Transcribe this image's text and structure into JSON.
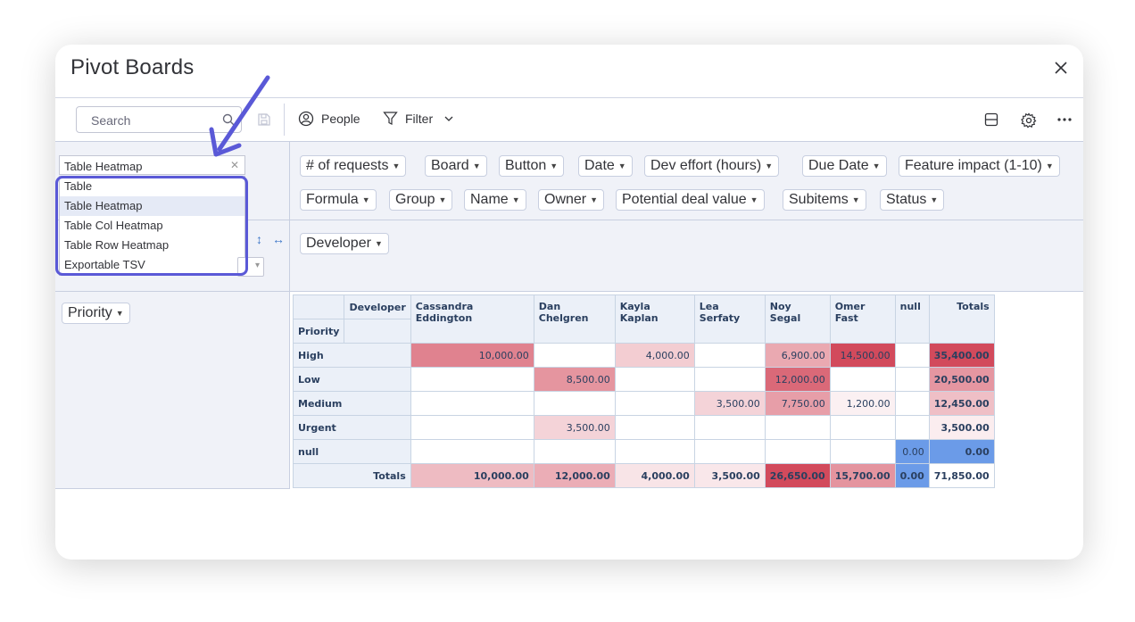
{
  "modal": {
    "title": "Pivot Boards"
  },
  "toolbar": {
    "search_placeholder": "Search",
    "people_label": "People",
    "filter_label": "Filter"
  },
  "renderer": {
    "selected": "Table Heatmap",
    "options": [
      "Table",
      "Table Heatmap",
      "Table Col Heatmap",
      "Table Row Heatmap",
      "Exportable TSV"
    ]
  },
  "fields": [
    "# of requests",
    "Board",
    "Button",
    "Date",
    "Dev effort (hours)",
    "Due Date",
    "Feature impact (1-10)",
    "Formula",
    "Group",
    "Name",
    "Owner",
    "Potential deal value",
    "Subitems",
    "Status"
  ],
  "col_field": "Developer",
  "row_field": "Priority",
  "pivot": {
    "col_header": "Developer",
    "row_header": "Priority",
    "columns": [
      "Cassandra Eddington",
      "Dan Chelgren",
      "Kayla Kaplan",
      "Lea Serfaty",
      "Noy Segal",
      "Omer Fast",
      "null",
      "Totals"
    ],
    "rows": [
      {
        "label": "High",
        "cells": [
          "10,000.00",
          "",
          "4,000.00",
          "",
          "6,900.00",
          "14,500.00",
          "",
          "35,400.00"
        ]
      },
      {
        "label": "Low",
        "cells": [
          "",
          "8,500.00",
          "",
          "",
          "12,000.00",
          "",
          "",
          "20,500.00"
        ]
      },
      {
        "label": "Medium",
        "cells": [
          "",
          "",
          "",
          "3,500.00",
          "7,750.00",
          "1,200.00",
          "",
          "12,450.00"
        ]
      },
      {
        "label": "Urgent",
        "cells": [
          "",
          "3,500.00",
          "",
          "",
          "",
          "",
          "",
          "3,500.00"
        ]
      },
      {
        "label": "null",
        "cells": [
          "",
          "",
          "",
          "",
          "",
          "",
          "0.00",
          "0.00"
        ]
      }
    ],
    "totals_label": "Totals",
    "totals": [
      "10,000.00",
      "12,000.00",
      "4,000.00",
      "3,500.00",
      "26,650.00",
      "15,700.00",
      "0.00",
      "71,850.00"
    ]
  },
  "colors": {
    "accent": "#5a59d7",
    "heat_max": "#d24a5c",
    "heat_zero": "#6b9be8"
  }
}
